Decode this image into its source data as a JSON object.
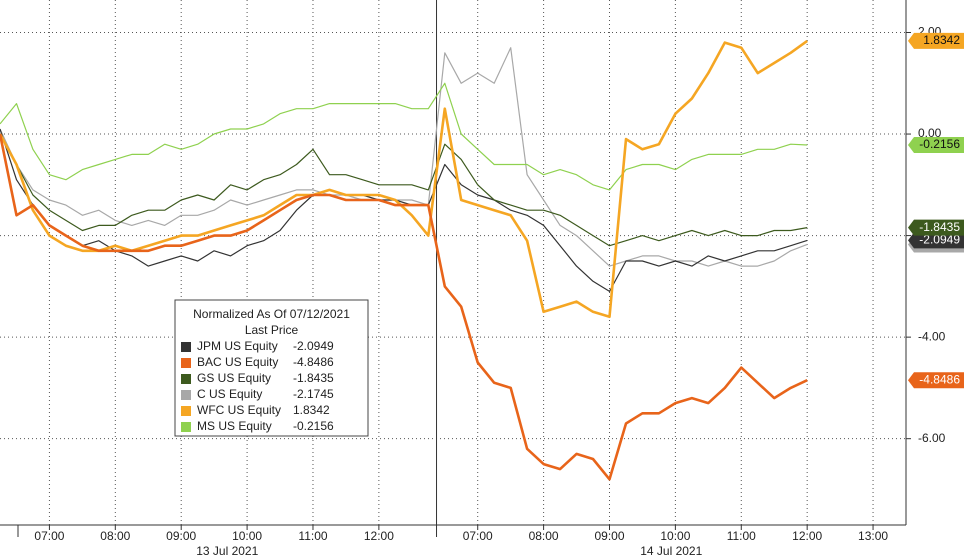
{
  "chart_data": {
    "type": "line",
    "legend_title": "Normalized As Of 07/12/2021",
    "legend_subtitle": "Last Price",
    "dates": [
      "13 Jul 2021",
      "14 Jul 2021"
    ],
    "categories": [
      null,
      null,
      null,
      "07:00",
      null,
      null,
      null,
      "08:00",
      null,
      null,
      null,
      "09:00",
      null,
      null,
      null,
      "10:00",
      null,
      null,
      null,
      "11:00",
      null,
      null,
      null,
      "12:00",
      null,
      null,
      null,
      null,
      null,
      "07:00",
      null,
      null,
      null,
      "08:00",
      null,
      null,
      null,
      "09:00",
      null,
      null,
      null,
      "10:00",
      null,
      null,
      null,
      "11:00",
      null,
      null,
      null,
      "12:00",
      null,
      null,
      null,
      "13:00",
      null
    ],
    "ylim": [
      -7.7,
      2.64
    ],
    "yticks": [
      {
        "value": 2,
        "label": "2.00"
      },
      {
        "value": 0,
        "label": "0.00"
      },
      {
        "value": -2,
        "label": "-2.00"
      },
      {
        "value": -4,
        "label": "-4.00"
      },
      {
        "value": -6,
        "label": "-6.00"
      }
    ],
    "grid": true,
    "series": [
      {
        "name": "JPM US Equity",
        "color": "#333333",
        "values": [
          0.1,
          -0.9,
          -1.4,
          -1.8,
          -2.0,
          -2.2,
          -2.1,
          -2.3,
          -2.4,
          -2.6,
          -2.5,
          -2.4,
          -2.5,
          -2.3,
          -2.4,
          -2.2,
          -2.1,
          -1.9,
          -1.5,
          -1.2,
          -1.1,
          -1.2,
          -1.2,
          -1.3,
          -1.3,
          -1.4,
          -1.4,
          -0.6,
          -1.0,
          -1.2,
          -1.3,
          -1.5,
          -1.6,
          -1.8,
          -2.2,
          -2.6,
          -2.9,
          -3.1,
          -2.5,
          -2.5,
          -2.6,
          -2.5,
          -2.6,
          -2.4,
          -2.5,
          -2.4,
          -2.3,
          -2.3,
          -2.2,
          -2.0949,
          null,
          null,
          null,
          null,
          null
        ]
      },
      {
        "name": "BAC US Equity",
        "color": "#e8641a",
        "values": [
          0.0,
          -1.6,
          -1.4,
          -1.8,
          -2.0,
          -2.2,
          -2.3,
          -2.3,
          -2.3,
          -2.3,
          -2.2,
          -2.2,
          -2.1,
          -2.0,
          -2.0,
          -1.9,
          -1.7,
          -1.5,
          -1.3,
          -1.2,
          -1.2,
          -1.3,
          -1.3,
          -1.3,
          -1.4,
          -1.4,
          -1.4,
          -3.0,
          -3.4,
          -4.5,
          -4.9,
          -5.0,
          -6.2,
          -6.5,
          -6.6,
          -6.3,
          -6.4,
          -6.8,
          -5.7,
          -5.5,
          -5.5,
          -5.3,
          -5.2,
          -5.3,
          -5.0,
          -4.6,
          -4.9,
          -5.2,
          -5.0,
          -4.8486,
          null,
          null,
          null,
          null,
          null
        ]
      },
      {
        "name": "GS US Equity",
        "color": "#3d5a1e",
        "values": [
          0.0,
          -0.6,
          -1.2,
          -1.5,
          -1.7,
          -1.9,
          -1.8,
          -1.8,
          -1.6,
          -1.5,
          -1.5,
          -1.3,
          -1.2,
          -1.3,
          -1.0,
          -1.1,
          -0.9,
          -0.8,
          -0.6,
          -0.3,
          -0.8,
          -0.8,
          -0.9,
          -1.0,
          -1.0,
          -1.0,
          -1.1,
          -0.2,
          -0.5,
          -1.0,
          -1.3,
          -1.4,
          -1.5,
          -1.5,
          -1.6,
          -1.8,
          -2.0,
          -2.2,
          -2.1,
          -2.0,
          -2.1,
          -2.0,
          -1.9,
          -2.0,
          -1.9,
          -2.0,
          -2.0,
          -1.9,
          -1.9,
          -1.8435,
          null,
          null,
          null,
          null,
          null
        ]
      },
      {
        "name": "C US Equity",
        "color": "#a8a8a8",
        "values": [
          0.1,
          -0.6,
          -1.1,
          -1.3,
          -1.4,
          -1.6,
          -1.5,
          -1.7,
          -1.8,
          -1.7,
          -1.8,
          -1.6,
          -1.6,
          -1.5,
          -1.3,
          -1.4,
          -1.3,
          -1.2,
          -1.1,
          -1.1,
          -1.2,
          -1.2,
          -1.3,
          -1.3,
          -1.3,
          -1.3,
          -1.4,
          1.6,
          1.0,
          1.2,
          1.0,
          1.7,
          -0.8,
          -1.3,
          -1.8,
          -2.0,
          -2.3,
          -2.6,
          -2.5,
          -2.4,
          -2.4,
          -2.5,
          -2.5,
          -2.6,
          -2.5,
          -2.6,
          -2.6,
          -2.5,
          -2.3,
          -2.1745,
          null,
          null,
          null,
          null,
          null
        ]
      },
      {
        "name": "WFC US Equity",
        "color": "#f5a623",
        "values": [
          0.0,
          -0.6,
          -1.5,
          -2.0,
          -2.2,
          -2.3,
          -2.3,
          -2.2,
          -2.3,
          -2.2,
          -2.1,
          -2.0,
          -2.0,
          -1.9,
          -1.8,
          -1.7,
          -1.6,
          -1.4,
          -1.2,
          -1.2,
          -1.1,
          -1.2,
          -1.2,
          -1.2,
          -1.3,
          -1.6,
          -2.0,
          0.5,
          -1.3,
          -1.4,
          -1.5,
          -1.6,
          -2.1,
          -3.5,
          -3.4,
          -3.3,
          -3.5,
          -3.6,
          -0.1,
          -0.3,
          -0.2,
          0.4,
          0.7,
          1.2,
          1.8,
          1.7,
          1.2,
          1.4,
          1.6,
          1.8342,
          null,
          null,
          null,
          null,
          null
        ]
      },
      {
        "name": "MS US Equity",
        "color": "#8fd14f",
        "values": [
          0.2,
          0.6,
          -0.3,
          -0.8,
          -0.9,
          -0.7,
          -0.6,
          -0.5,
          -0.4,
          -0.4,
          -0.2,
          -0.3,
          -0.2,
          0.0,
          0.1,
          0.1,
          0.2,
          0.4,
          0.5,
          0.5,
          0.6,
          0.6,
          0.6,
          0.6,
          0.6,
          0.5,
          0.5,
          1.0,
          0.0,
          -0.3,
          -0.6,
          -0.6,
          -0.6,
          -0.8,
          -0.7,
          -0.8,
          -1.0,
          -1.1,
          -0.7,
          -0.6,
          -0.6,
          -0.7,
          -0.5,
          -0.4,
          -0.4,
          -0.4,
          -0.3,
          -0.3,
          -0.2,
          -0.2156,
          null,
          null,
          null,
          null,
          null
        ]
      }
    ]
  }
}
